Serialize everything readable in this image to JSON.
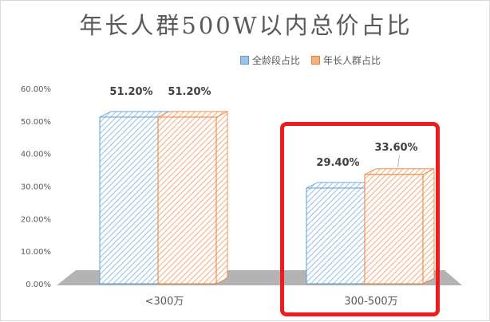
{
  "chart_data": {
    "type": "bar",
    "title": "年长人群500W以内总价占比",
    "categories": [
      "<300万",
      "300-500万"
    ],
    "series": [
      {
        "name": "全龄段占比",
        "values": [
          51.2,
          29.4
        ],
        "color": "#9dc3e6",
        "edge": "#5b9bd5"
      },
      {
        "name": "年长人群占比",
        "values": [
          51.2,
          33.6
        ],
        "color": "#f4b183",
        "edge": "#ed7d31"
      }
    ],
    "data_labels": [
      [
        "51.20%",
        "29.40%"
      ],
      [
        "51.20%",
        "33.60%"
      ]
    ],
    "ylim": [
      0,
      60
    ],
    "yticks": [
      "0.00%",
      "10.00%",
      "20.00%",
      "30.00%",
      "40.00%",
      "50.00%",
      "60.00%"
    ],
    "legend_position": "top-right",
    "grid": false,
    "highlight_category": "300-500万",
    "highlight_color": "#ee1c1c"
  }
}
